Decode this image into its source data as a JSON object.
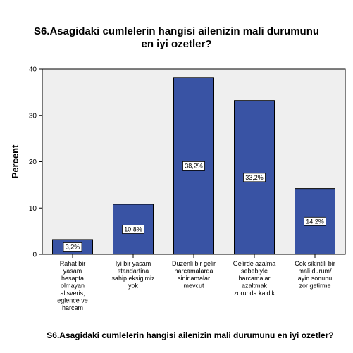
{
  "chart_data": {
    "type": "bar",
    "title": "S6.Asagidaki cumlelerin hangisi ailenizin mali durumunu en iyi ozetler?",
    "xlabel": "S6.Asagidaki cumlelerin hangisi ailenizin mali durumunu en iyi ozetler?",
    "ylabel": "Percent",
    "ylim": [
      0,
      40
    ],
    "yticks": [
      0,
      10,
      20,
      30,
      40
    ],
    "categories": [
      [
        "Rahat bir",
        "yasam",
        "hesapta",
        "olmayan",
        "alisveris,",
        "eglence ve",
        "harcam"
      ],
      [
        "Iyi bir yasam",
        "standartina",
        "sahip eksigimiz",
        "yok"
      ],
      [
        "Duzenli bir gelir",
        "harcamalarda",
        "sinirlamalar",
        "mevcut"
      ],
      [
        "Gelirde azalma",
        "sebebiyle",
        "harcamalar",
        "azaltmak",
        "zorunda kaldik"
      ],
      [
        "Cok sikintili bir",
        "mali durum/",
        "ayin sonunu",
        "zor getirme"
      ]
    ],
    "values": [
      3.2,
      10.8,
      38.2,
      33.2,
      14.2
    ],
    "data_labels": [
      "3,2%",
      "10,8%",
      "38,2%",
      "33,2%",
      "14,2%"
    ],
    "colors": {
      "bar": "#3953a4",
      "bar_edge": "#000000",
      "plot_bg": "#efefef",
      "label_bg": "#ffffff"
    },
    "grid": false
  }
}
